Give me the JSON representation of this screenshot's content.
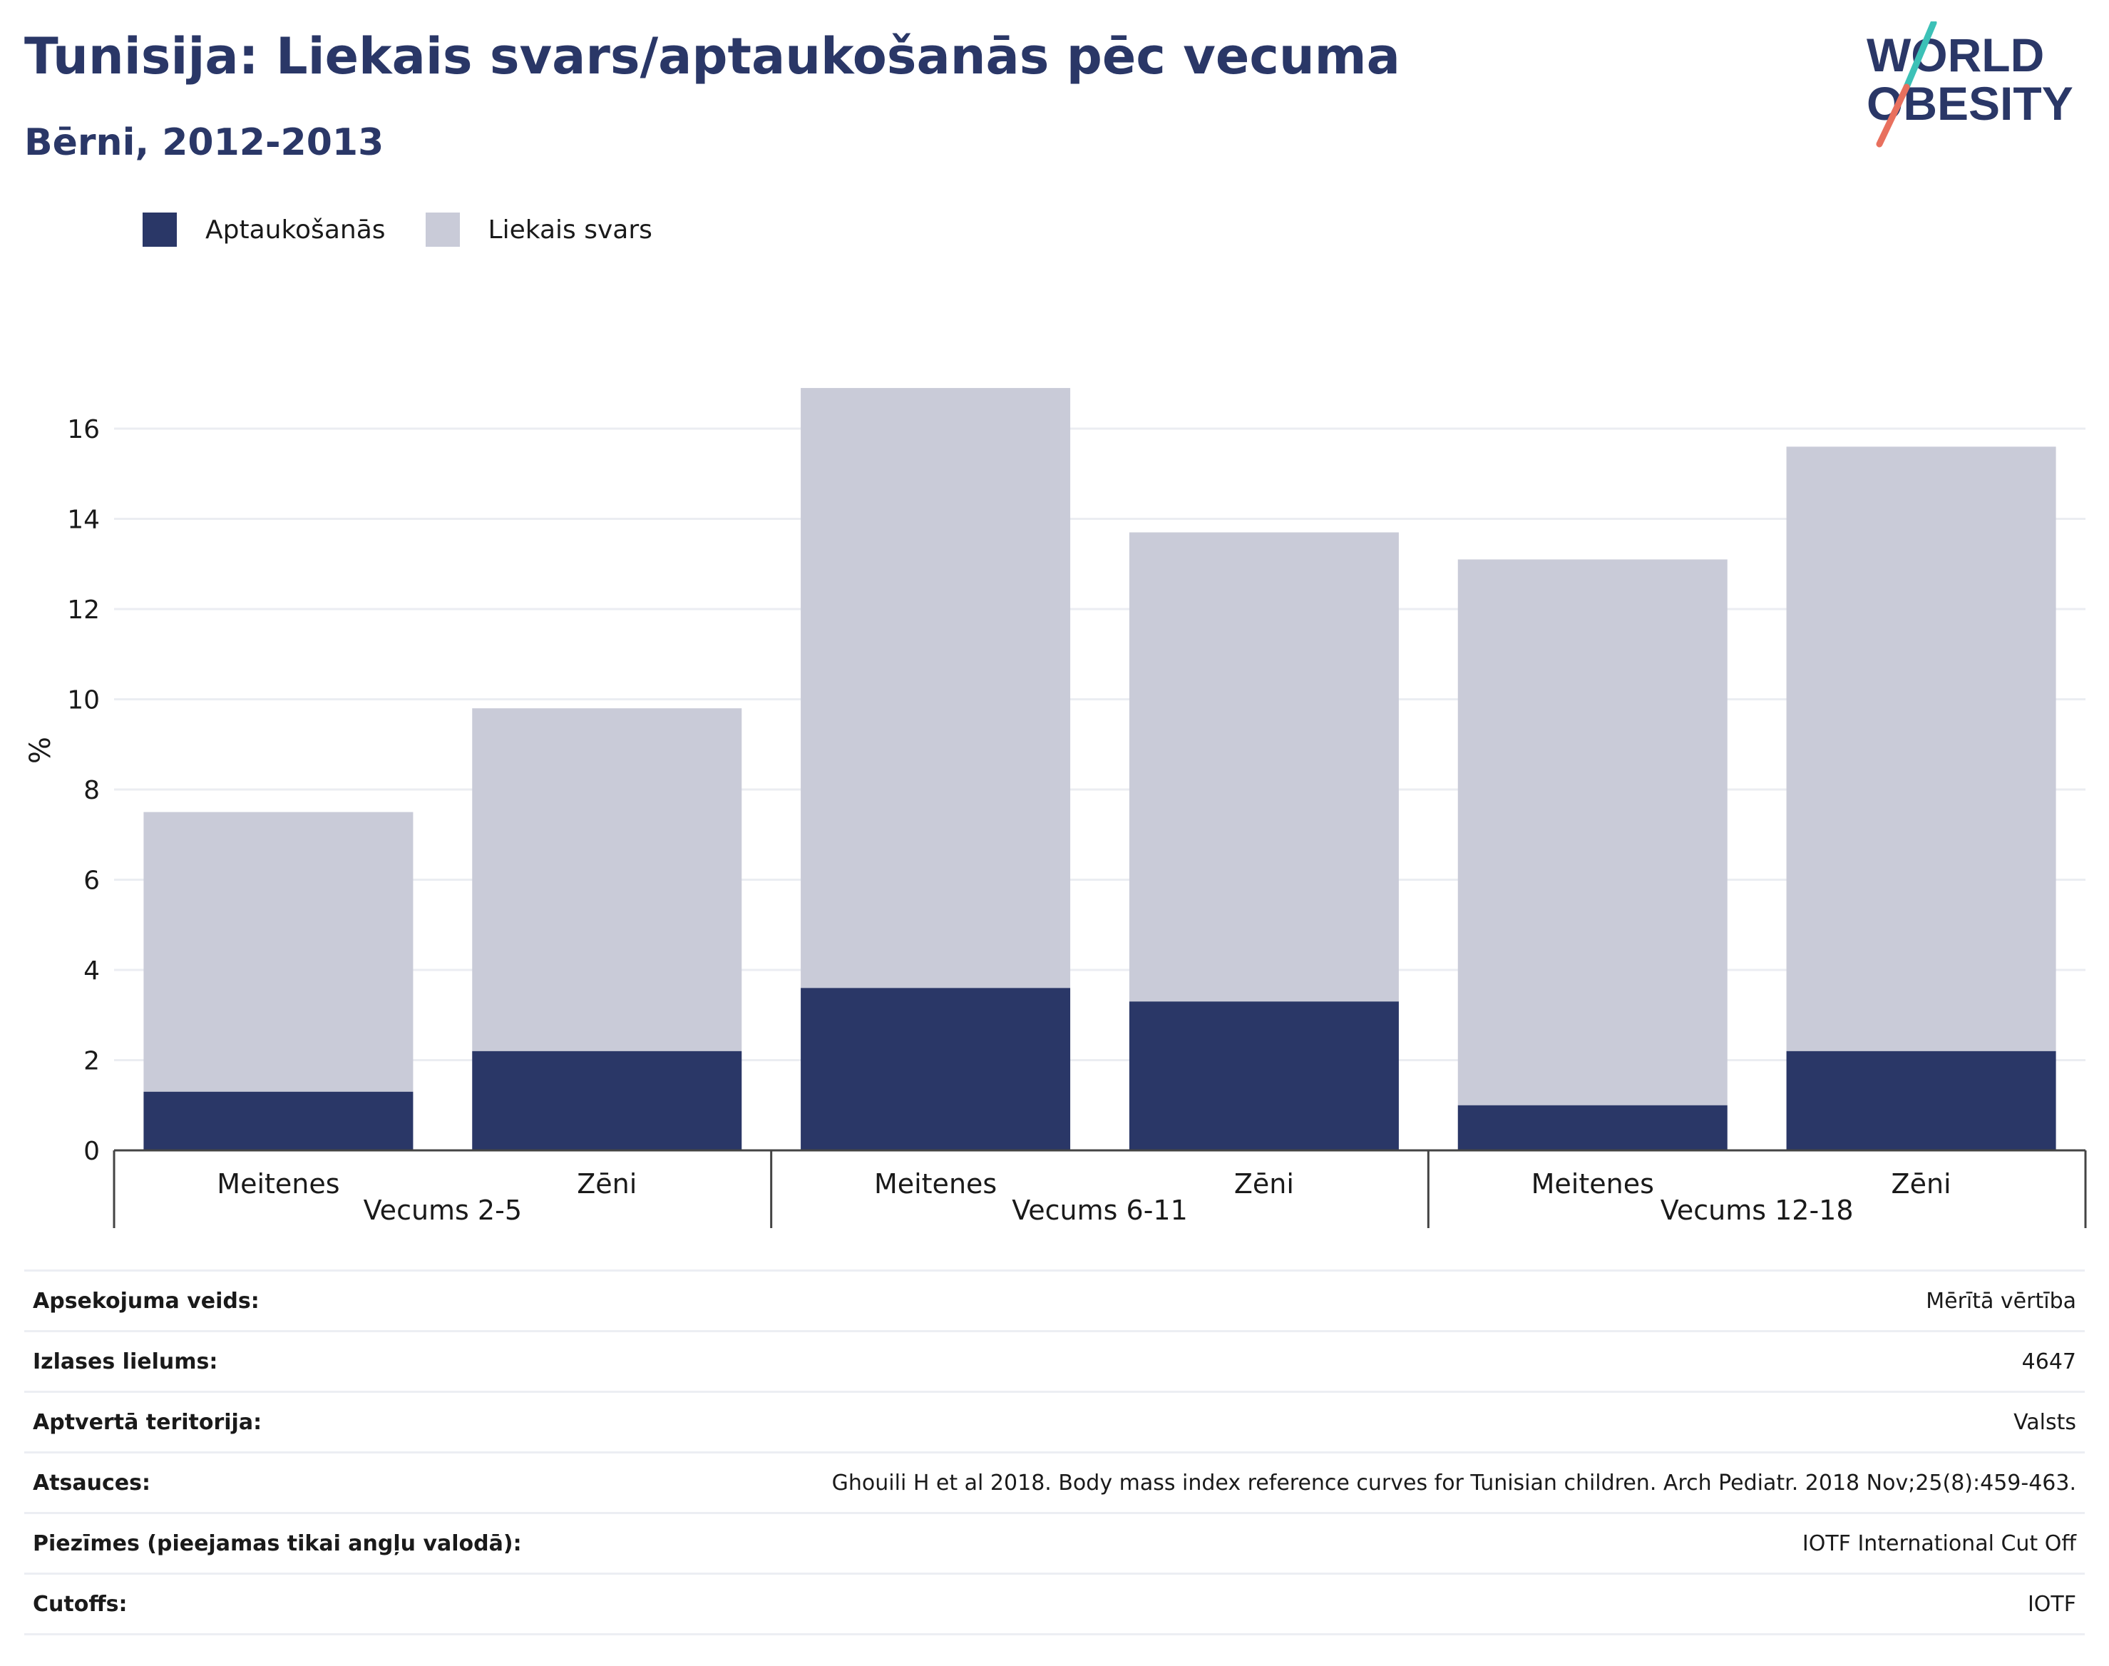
{
  "header": {
    "title": "Tunisija: Liekais svars/aptaukošanās pēc vecuma",
    "subtitle": "Bērni, 2012-2013",
    "logo_text_line1": "WORLD",
    "logo_text_line2": "OBESITY"
  },
  "colors": {
    "obesity": "#2a3767",
    "overweight": "#c9cbd8",
    "title": "#2a3767",
    "logo_accent_teal": "#3cc1b7",
    "logo_accent_red": "#e8705e"
  },
  "legend": [
    {
      "label": "Aptaukošanās",
      "color": "#2a3767"
    },
    {
      "label": "Liekais svars",
      "color": "#c9cbd8"
    }
  ],
  "chart_data": {
    "type": "bar",
    "stacked": true,
    "ylabel": "%",
    "ylim": [
      0,
      17
    ],
    "yticks": [
      0,
      2,
      4,
      6,
      8,
      10,
      12,
      14,
      16
    ],
    "grid": true,
    "legend_position": "top-left",
    "groups": [
      "Vecums 2-5",
      "Vecums 6-11",
      "Vecums 12-18"
    ],
    "categories": [
      "Meitenes",
      "Zēni",
      "Meitenes",
      "Zēni",
      "Meitenes",
      "Zēni"
    ],
    "series": [
      {
        "name": "Aptaukošanās",
        "values": [
          1.3,
          2.2,
          3.6,
          3.3,
          1.0,
          2.2
        ]
      },
      {
        "name": "Liekais svars",
        "values": [
          6.2,
          7.6,
          13.3,
          10.4,
          12.1,
          13.4
        ]
      }
    ]
  },
  "info_table": [
    {
      "label": "Apsekojuma veids:",
      "value": "Mērītā vērtība"
    },
    {
      "label": "Izlases lielums:",
      "value": "4647"
    },
    {
      "label": "Aptvertā teritorija:",
      "value": "Valsts"
    },
    {
      "label": "Atsauces:",
      "value": "Ghouili H et al 2018. Body mass index reference curves for Tunisian children. Arch Pediatr. 2018 Nov;25(8):459-463."
    },
    {
      "label": "Piezīmes (pieejamas tikai angļu valodā):",
      "value": "IOTF International Cut Off"
    },
    {
      "label": "Cutoffs:",
      "value": "IOTF"
    }
  ]
}
